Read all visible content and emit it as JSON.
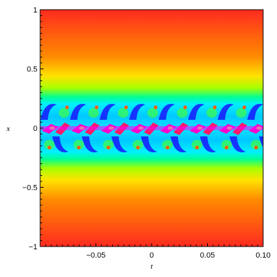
{
  "chart_data": {
    "type": "heatmap",
    "title": "",
    "xlabel": "t",
    "ylabel": "x",
    "xlim": [
      -0.1,
      0.1
    ],
    "ylim": [
      -1,
      1
    ],
    "x_ticks": [
      {
        "value": -0.05,
        "label": "−0.05"
      },
      {
        "value": 0,
        "label": "0"
      },
      {
        "value": 0.05,
        "label": "0.05"
      },
      {
        "value": 0.1,
        "label": "0.10"
      }
    ],
    "y_ticks": [
      {
        "value": 1,
        "label": "1"
      },
      {
        "value": 0.5,
        "label": "0.5"
      },
      {
        "value": 0,
        "label": "0"
      },
      {
        "value": -0.5,
        "label": "−0.5"
      },
      {
        "value": -1,
        "label": "−1"
      }
    ],
    "colormap": [
      "#ff2a1f",
      "#ffd200",
      "#60ff00",
      "#00ffb0",
      "#00c8ff",
      "#1818ff",
      "#ff00ff",
      "#ff1a66"
    ],
    "grid": false,
    "legend": "none"
  }
}
